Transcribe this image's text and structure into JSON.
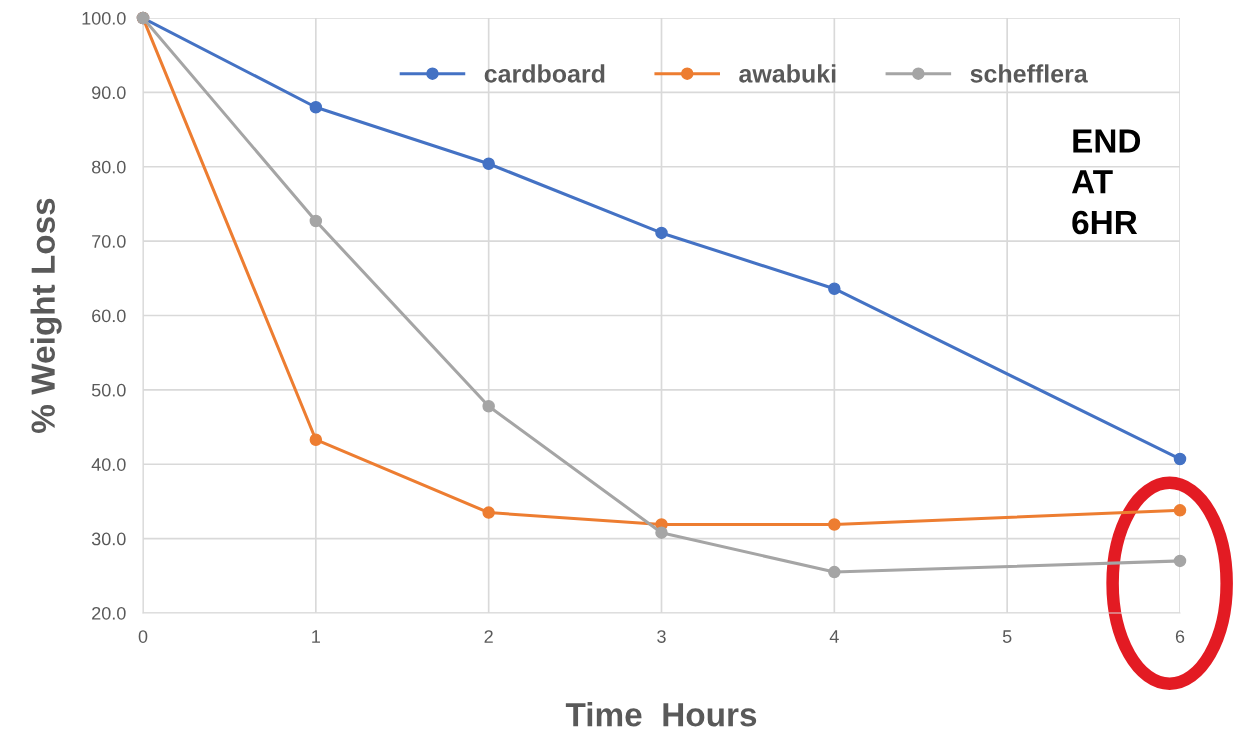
{
  "chart_data": {
    "type": "line",
    "xlabel": "Time  Hours",
    "ylabel": "% Weight Loss",
    "x": [
      0,
      1,
      2,
      3,
      4,
      6
    ],
    "series": [
      {
        "name": "cardboard",
        "color": "#4472c4",
        "values": [
          100.0,
          88.0,
          80.4,
          71.1,
          63.6,
          40.7
        ]
      },
      {
        "name": "awabuki",
        "color": "#ed7d31",
        "values": [
          100.0,
          43.3,
          33.5,
          31.9,
          31.9,
          33.8
        ]
      },
      {
        "name": "schefflera",
        "color": "#a5a5a5",
        "values": [
          100.0,
          72.7,
          47.8,
          30.8,
          25.5,
          27.0
        ]
      }
    ],
    "xlim": [
      0,
      6
    ],
    "xticks": [
      0,
      1,
      2,
      3,
      4,
      5,
      6
    ],
    "ylim": [
      20,
      100
    ],
    "yticks": [
      {
        "value": 20,
        "label": "20.0"
      },
      {
        "value": 30,
        "label": "30.0"
      },
      {
        "value": 40,
        "label": "40.0"
      },
      {
        "value": 50,
        "label": "50.0"
      },
      {
        "value": 60,
        "label": "60.0"
      },
      {
        "value": 70,
        "label": "70.0"
      },
      {
        "value": 80,
        "label": "80.0"
      },
      {
        "value": 90,
        "label": "90.0"
      },
      {
        "value": 100,
        "label": "100.0"
      }
    ],
    "grid": true,
    "legend": "top",
    "marker": "circle",
    "line_style": "solid",
    "annotations": [
      "END\nAT\n6HR"
    ]
  }
}
